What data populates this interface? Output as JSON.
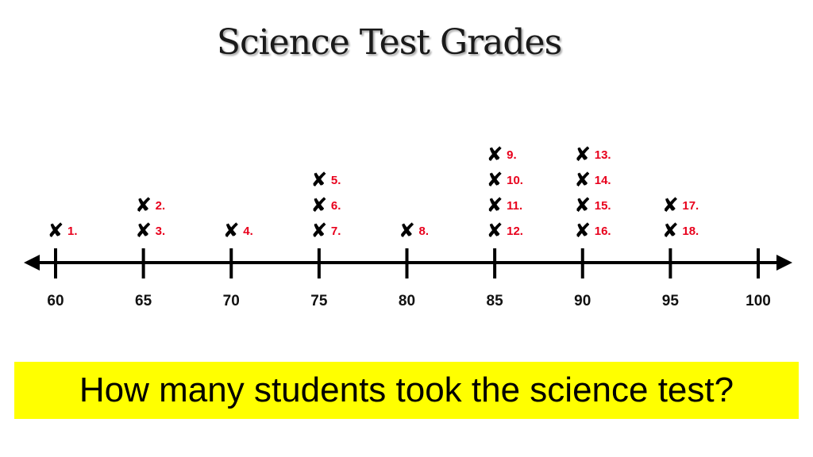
{
  "chart_data": {
    "type": "dot",
    "title": "Science Test Grades",
    "ticks": [
      60,
      65,
      70,
      75,
      80,
      85,
      90,
      95,
      100
    ],
    "xlim": [
      60,
      100
    ],
    "marker": "✘",
    "points": [
      {
        "x": 60,
        "level": 1,
        "label": "1."
      },
      {
        "x": 65,
        "level": 2,
        "label": "2."
      },
      {
        "x": 65,
        "level": 1,
        "label": "3."
      },
      {
        "x": 70,
        "level": 1,
        "label": "4."
      },
      {
        "x": 75,
        "level": 3,
        "label": "5."
      },
      {
        "x": 75,
        "level": 2,
        "label": "6."
      },
      {
        "x": 75,
        "level": 1,
        "label": "7."
      },
      {
        "x": 80,
        "level": 1,
        "label": "8."
      },
      {
        "x": 85,
        "level": 4,
        "label": "9."
      },
      {
        "x": 85,
        "level": 3,
        "label": "10."
      },
      {
        "x": 85,
        "level": 2,
        "label": "11."
      },
      {
        "x": 85,
        "level": 1,
        "label": "12."
      },
      {
        "x": 90,
        "level": 4,
        "label": "13."
      },
      {
        "x": 90,
        "level": 3,
        "label": "14."
      },
      {
        "x": 90,
        "level": 2,
        "label": "15."
      },
      {
        "x": 90,
        "level": 1,
        "label": "16."
      },
      {
        "x": 95,
        "level": 2,
        "label": "17."
      },
      {
        "x": 95,
        "level": 1,
        "label": "18."
      }
    ]
  },
  "question": {
    "text": "How many students took the science test?",
    "background": "#ffff00"
  },
  "colors": {
    "label": "#e8001c",
    "marker": "#000000",
    "axis": "#000000"
  }
}
